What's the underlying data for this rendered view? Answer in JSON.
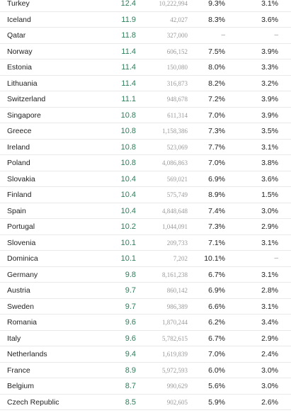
{
  "table": {
    "rows": [
      {
        "country": "Turkey",
        "rate": "12.4",
        "population": "10,222,994",
        "pct_a": "9.3%",
        "pct_b": "3.1%"
      },
      {
        "country": "Iceland",
        "rate": "11.9",
        "population": "42,027",
        "pct_a": "8.3%",
        "pct_b": "3.6%"
      },
      {
        "country": "Qatar",
        "rate": "11.8",
        "population": "327,000",
        "pct_a": "–",
        "pct_b": "–"
      },
      {
        "country": "Norway",
        "rate": "11.4",
        "population": "606,152",
        "pct_a": "7.5%",
        "pct_b": "3.9%"
      },
      {
        "country": "Estonia",
        "rate": "11.4",
        "population": "150,080",
        "pct_a": "8.0%",
        "pct_b": "3.3%"
      },
      {
        "country": "Lithuania",
        "rate": "11.4",
        "population": "316,873",
        "pct_a": "8.2%",
        "pct_b": "3.2%"
      },
      {
        "country": "Switzerland",
        "rate": "11.1",
        "population": "948,678",
        "pct_a": "7.2%",
        "pct_b": "3.9%"
      },
      {
        "country": "Singapore",
        "rate": "10.8",
        "population": "611,314",
        "pct_a": "7.0%",
        "pct_b": "3.9%"
      },
      {
        "country": "Greece",
        "rate": "10.8",
        "population": "1,158,386",
        "pct_a": "7.3%",
        "pct_b": "3.5%"
      },
      {
        "country": "Ireland",
        "rate": "10.8",
        "population": "523,069",
        "pct_a": "7.7%",
        "pct_b": "3.1%"
      },
      {
        "country": "Poland",
        "rate": "10.8",
        "population": "4,086,863",
        "pct_a": "7.0%",
        "pct_b": "3.8%"
      },
      {
        "country": "Slovakia",
        "rate": "10.4",
        "population": "569,021",
        "pct_a": "6.9%",
        "pct_b": "3.6%"
      },
      {
        "country": "Finland",
        "rate": "10.4",
        "population": "575,749",
        "pct_a": "8.9%",
        "pct_b": "1.5%"
      },
      {
        "country": "Spain",
        "rate": "10.4",
        "population": "4,848,648",
        "pct_a": "7.4%",
        "pct_b": "3.0%"
      },
      {
        "country": "Portugal",
        "rate": "10.2",
        "population": "1,044,091",
        "pct_a": "7.3%",
        "pct_b": "2.9%"
      },
      {
        "country": "Slovenia",
        "rate": "10.1",
        "population": "209,733",
        "pct_a": "7.1%",
        "pct_b": "3.1%"
      },
      {
        "country": "Dominica",
        "rate": "10.1",
        "population": "7,202",
        "pct_a": "10.1%",
        "pct_b": "–"
      },
      {
        "country": "Germany",
        "rate": "9.8",
        "population": "8,161,238",
        "pct_a": "6.7%",
        "pct_b": "3.1%"
      },
      {
        "country": "Austria",
        "rate": "9.7",
        "population": "860,142",
        "pct_a": "6.9%",
        "pct_b": "2.8%"
      },
      {
        "country": "Sweden",
        "rate": "9.7",
        "population": "986,389",
        "pct_a": "6.6%",
        "pct_b": "3.1%"
      },
      {
        "country": "Romania",
        "rate": "9.6",
        "population": "1,870,244",
        "pct_a": "6.2%",
        "pct_b": "3.4%"
      },
      {
        "country": "Italy",
        "rate": "9.6",
        "population": "5,782,615",
        "pct_a": "6.7%",
        "pct_b": "2.9%"
      },
      {
        "country": "Netherlands",
        "rate": "9.4",
        "population": "1,619,839",
        "pct_a": "7.0%",
        "pct_b": "2.4%"
      },
      {
        "country": "France",
        "rate": "8.9",
        "population": "5,972,593",
        "pct_a": "6.0%",
        "pct_b": "3.0%"
      },
      {
        "country": "Belgium",
        "rate": "8.7",
        "population": "990,629",
        "pct_a": "5.6%",
        "pct_b": "3.0%"
      },
      {
        "country": "Czech Republic",
        "rate": "8.5",
        "population": "902,605",
        "pct_a": "5.9%",
        "pct_b": "2.6%"
      }
    ]
  },
  "colors": {
    "rate_text": "#2e7d5b",
    "population_text": "#9a9a9a",
    "body_text": "#222222",
    "row_divider": "#e9e9e9"
  }
}
